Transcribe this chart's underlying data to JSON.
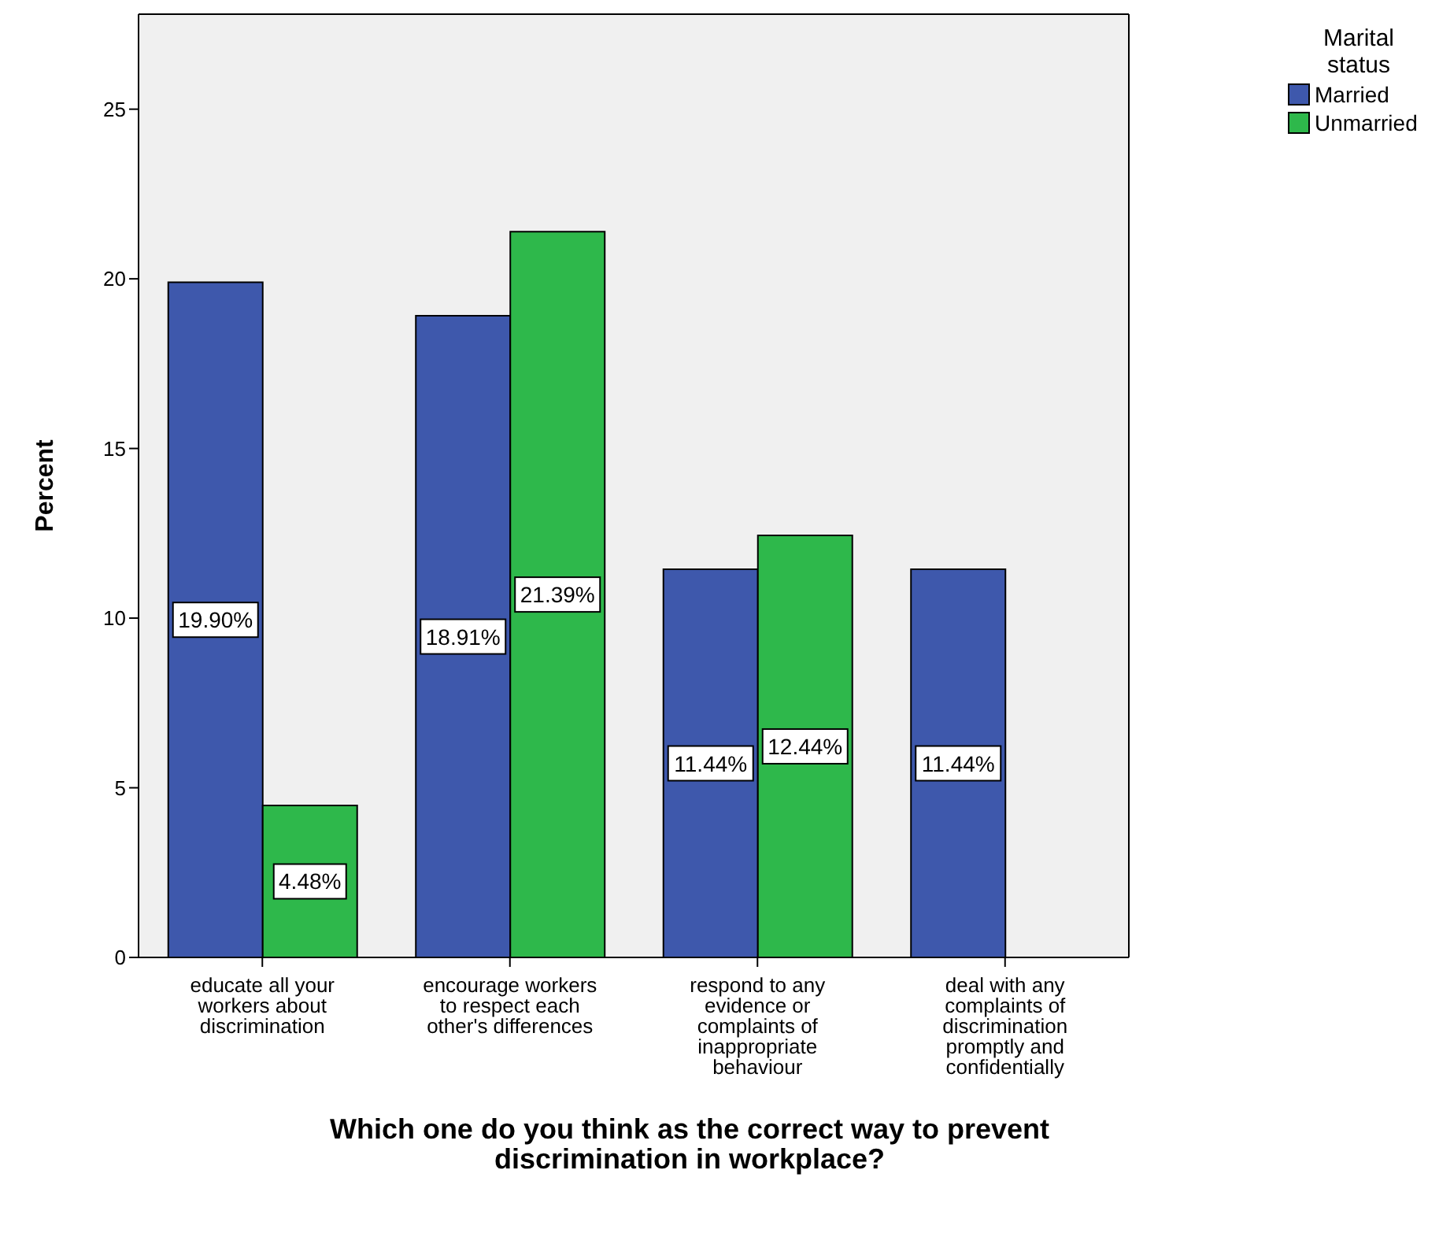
{
  "chart_data": {
    "type": "bar",
    "xlabel": "Which one do you think as the correct way to prevent discrimination in workplace?",
    "ylabel": "Percent",
    "legend_title": "Marital status",
    "legend": "top right",
    "grid": false,
    "categories": [
      "educate all your workers about discrimination",
      "encourage workers to respect each other's differences",
      "respond to any evidence or complaints of inappropriate behaviour",
      "deal with any complaints of discrimination promptly and confidentially"
    ],
    "series": [
      {
        "name": "Married",
        "color": "#3e58ac",
        "values": [
          19.9,
          18.91,
          11.44,
          11.44
        ],
        "value_labels": [
          "19.90%",
          "18.91%",
          "11.44%",
          "11.44%"
        ]
      },
      {
        "name": "Unmarried",
        "color": "#2eb84b",
        "values": [
          4.48,
          21.39,
          12.44,
          null
        ],
        "value_labels": [
          "4.48%",
          "21.39%",
          "12.44%",
          null
        ]
      }
    ],
    "ylim": [
      0,
      27.8
    ],
    "yticks": [
      0,
      5,
      10,
      15,
      20,
      25
    ]
  }
}
